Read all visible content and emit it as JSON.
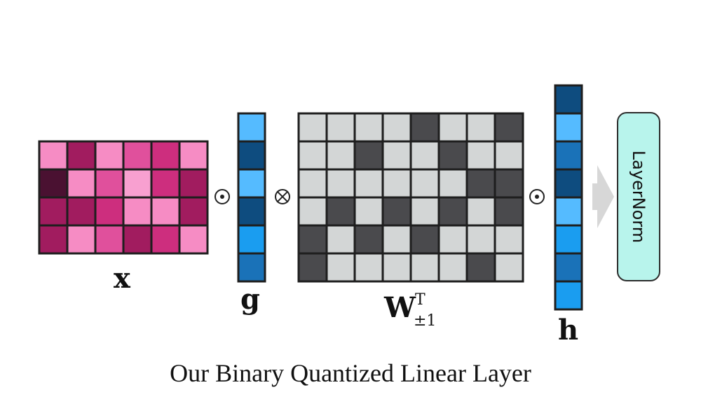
{
  "x_matrix": {
    "label": "x",
    "rows": [
      [
        "#f68cc4",
        "#a11c5f",
        "#f68cc4",
        "#e0509c",
        "#cd2e7e",
        "#f68cc4"
      ],
      [
        "#4a1131",
        "#f68cc4",
        "#e0509c",
        "#f8a0d0",
        "#cd2e7e",
        "#a11c5f"
      ],
      [
        "#a11c5f",
        "#a11c5f",
        "#cd2e7e",
        "#f68cc4",
        "#f68cc4",
        "#a11c5f"
      ],
      [
        "#a11c5f",
        "#f68cc4",
        "#e0509c",
        "#a11c5f",
        "#cd2e7e",
        "#f68cc4"
      ]
    ]
  },
  "g_vector": {
    "label": "g",
    "cells": [
      "#55bbff",
      "#0e4c7f",
      "#55bbff",
      "#0e4c7f",
      "#1a9df0",
      "#1a72b8"
    ]
  },
  "w_matrix": {
    "label_main": "W",
    "label_sup": "T",
    "label_sub": "±1",
    "dark_color": "#4a4a4d",
    "light_color": "#d3d6d6",
    "rows": [
      [
        0,
        0,
        0,
        0,
        1,
        0,
        0,
        1
      ],
      [
        0,
        0,
        1,
        0,
        0,
        1,
        0,
        0
      ],
      [
        0,
        0,
        0,
        0,
        0,
        0,
        1,
        1
      ],
      [
        0,
        1,
        0,
        1,
        0,
        1,
        0,
        1
      ],
      [
        1,
        0,
        1,
        0,
        1,
        0,
        0,
        0
      ],
      [
        1,
        0,
        0,
        0,
        0,
        0,
        1,
        0
      ]
    ]
  },
  "h_vector": {
    "label": "h",
    "cells": [
      "#0e4c7f",
      "#55bbff",
      "#1a72b8",
      "#0e4c7f",
      "#55bbff",
      "#1a9df0",
      "#1a72b8",
      "#1a9df0"
    ]
  },
  "operators": {
    "op1": "dot",
    "op2": "otimes",
    "op3": "dot"
  },
  "layernorm": {
    "label": "LayerNorm",
    "fill": "#b8f4ec"
  },
  "arrow_color": "#d7d7d7",
  "caption": "Our Binary Quantized Linear Layer"
}
